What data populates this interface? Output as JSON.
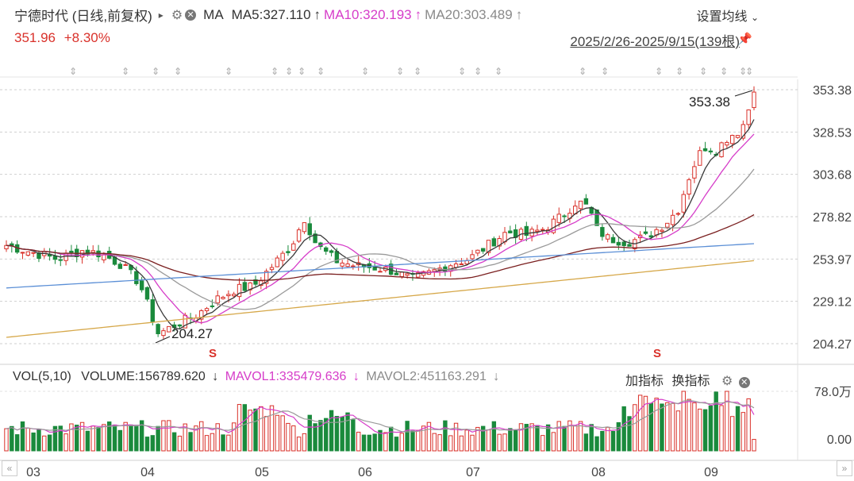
{
  "header": {
    "stock_name": "宁德时代 (日线,前复权)",
    "ma_label": "MA",
    "ma5": "MA5:327.110",
    "ma10": "MA10:320.193",
    "ma20": "MA20:303.489",
    "price": "351.96",
    "change": "+8.30%",
    "range": "2025/2/26-2025/9/15(139根)",
    "set_ma": "设置均线"
  },
  "volume_header": {
    "vol_label": "VOL(5,10)",
    "volume": "VOLUME:156789.620",
    "mavol1": "MAVOL1:335479.636",
    "mavol2": "MAVOL2:451163.291",
    "add_indicator": "加指标",
    "switch_indicator": "换指标"
  },
  "colors": {
    "up": "#d9312a",
    "down": "#1a8a3c",
    "ma5": "#3a3a3a",
    "ma10": "#d63dc9",
    "ma20": "#9a9a9a",
    "ma60": "#7a1f1f",
    "ma120": "#5b8fd6",
    "ma250": "#d6a84a"
  },
  "chart_data": [
    {
      "type": "candlestick",
      "y_ticks": [
        "353.38",
        "328.53",
        "303.68",
        "278.82",
        "253.97",
        "229.12",
        "204.27"
      ],
      "ylim": [
        204.27,
        353.38
      ],
      "x_ticks": [
        "03",
        "04",
        "05",
        "06",
        "07",
        "08",
        "09"
      ],
      "annotations": {
        "high": "353.38",
        "low": "204.27"
      },
      "signal_marks": [
        "S",
        "S"
      ],
      "grid": true
    },
    {
      "type": "bar",
      "name": "volume",
      "y_ticks": [
        "78.0万",
        "0.00"
      ]
    }
  ]
}
